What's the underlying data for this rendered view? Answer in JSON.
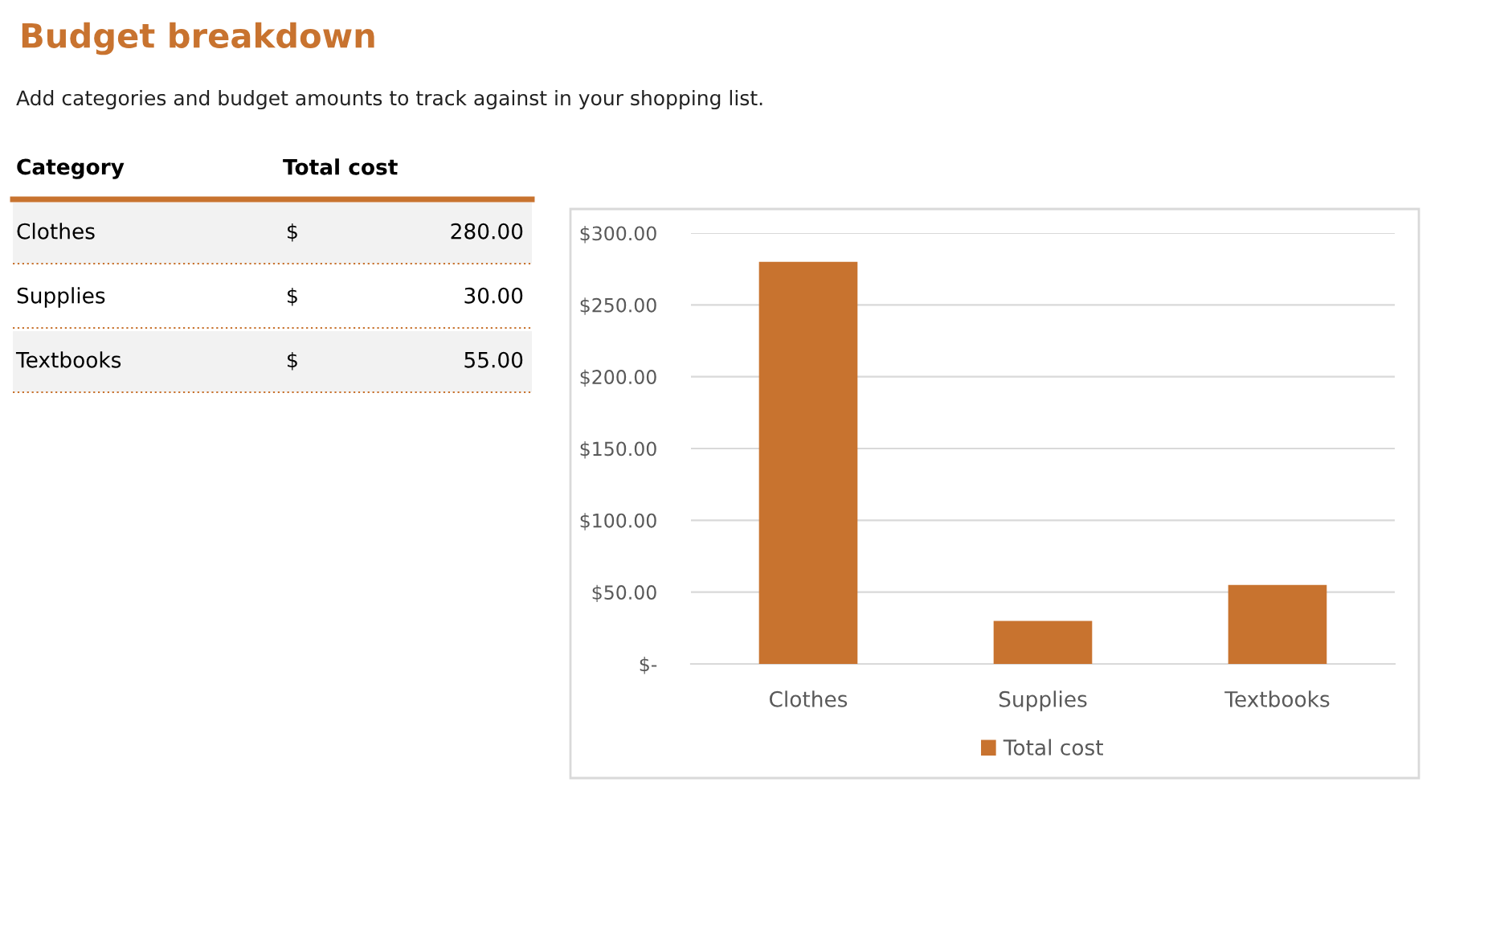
{
  "chart_data": {
    "type": "bar",
    "title": "Budget breakdown",
    "subtitle": "Add categories and budget amounts to track against in your shopping list.",
    "annotations": [
      "Category",
      "Total cost"
    ],
    "categories": [
      "Clothes",
      "Supplies",
      "Textbooks"
    ],
    "series": [
      {
        "name": "Total cost",
        "color": "#c8732f",
        "values": [
          280,
          30,
          55
        ],
        "value_labels": [
          "$ 280.00",
          "$ 30.00",
          "$ 55.00"
        ]
      }
    ],
    "ylim": [
      0,
      300
    ],
    "yticks": [
      {
        "value": 0,
        "label": "$-"
      },
      {
        "value": 50,
        "label": "$50.00"
      },
      {
        "value": 100,
        "label": "$100.00"
      },
      {
        "value": 150,
        "label": "$150.00"
      },
      {
        "value": 200,
        "label": "$200.00"
      },
      {
        "value": 250,
        "label": "$250.00"
      },
      {
        "value": 300,
        "label": "$300.00"
      }
    ],
    "grid": "y",
    "legend": "bottom"
  }
}
